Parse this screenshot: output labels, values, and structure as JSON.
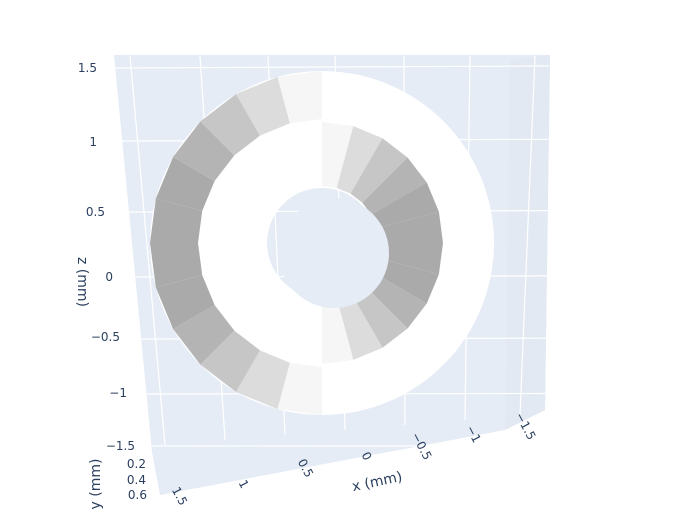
{
  "colors": {
    "background": "#ffffff",
    "wall": "#e5ecf6",
    "grid": "#ffffff",
    "text": "#2a3f5f"
  },
  "chart_data": {
    "type": "surface-3d",
    "title": "",
    "xlabel": "x (mm)",
    "ylabel": "y (mm)",
    "zlabel": "z (mm)",
    "x_ticks": [
      "1.5",
      "1",
      "0.5",
      "0",
      "−0.5",
      "−1",
      "−1.5"
    ],
    "y_ticks": [
      "0.2",
      "0.4",
      "0.6"
    ],
    "z_ticks": [
      "1.5",
      "1",
      "0.5",
      "0",
      "−0.5",
      "−1",
      "−1.5"
    ],
    "xlim": [
      -1.5,
      1.5
    ],
    "ylim": [
      0.1,
      0.6
    ],
    "zlim": [
      -1.5,
      1.5
    ],
    "surface": {
      "shape": "torus",
      "axis": "y",
      "center": [
        0,
        0.35,
        0
      ],
      "outer_radius": 1.35,
      "inner_radius": 0.45,
      "colorscale": "grey",
      "showscale": false
    },
    "grid": true,
    "legend": "none"
  }
}
